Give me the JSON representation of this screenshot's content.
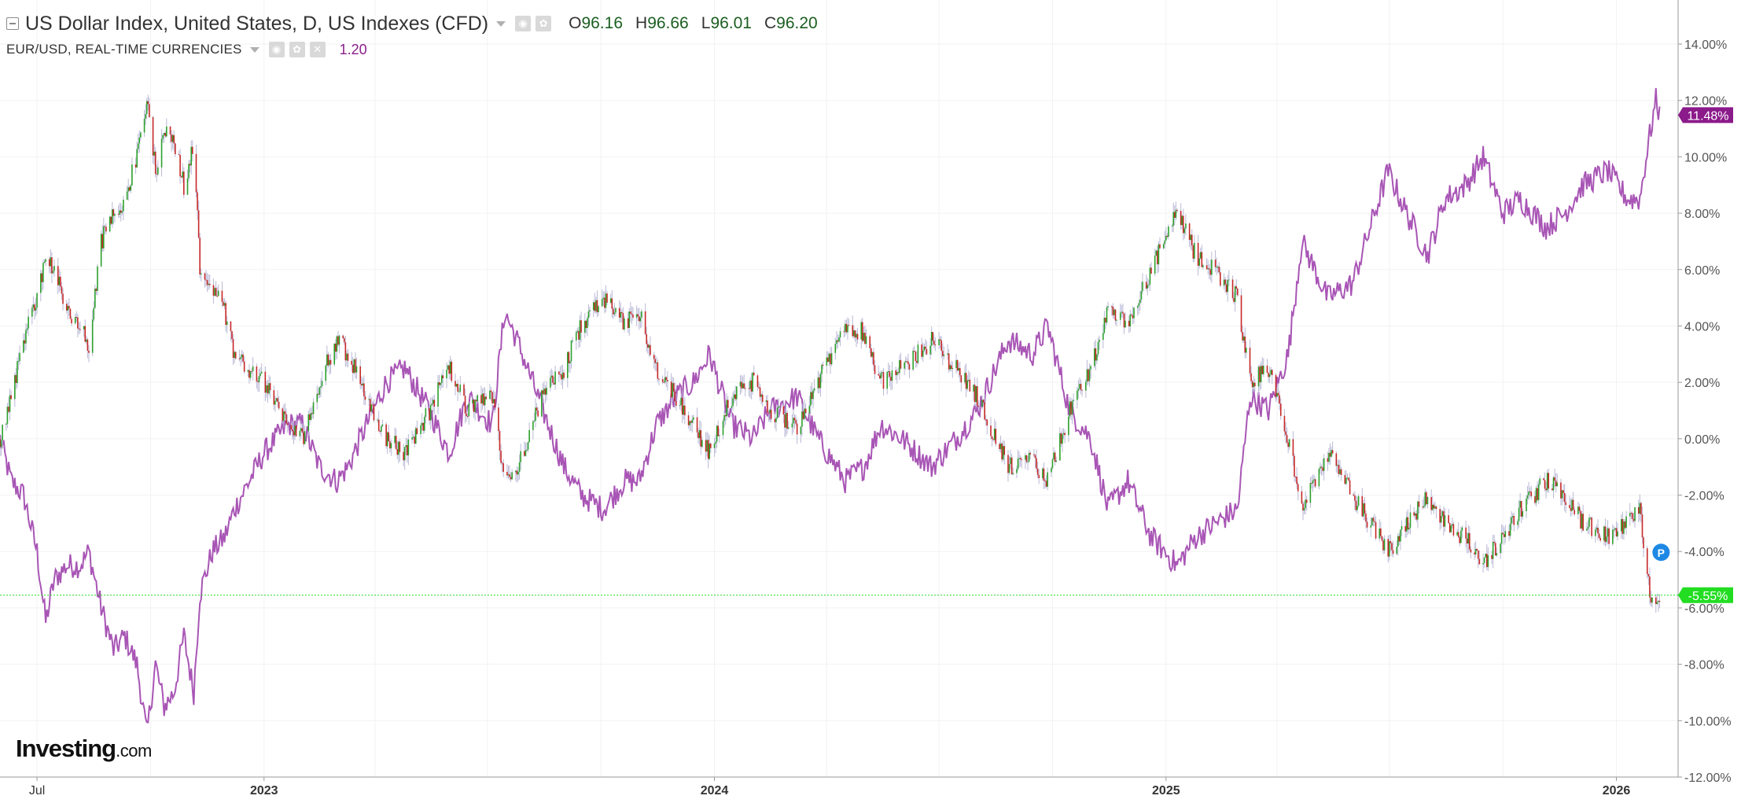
{
  "legend": {
    "main_title": "US Dollar Index, United States, D, US Indexes (CFD)",
    "open_prefix": "O",
    "open": "96.16",
    "high_prefix": "H",
    "high": "96.66",
    "low_prefix": "L",
    "low": "96.01",
    "close_prefix": "C",
    "close": "96.20",
    "compare_title": "EUR/USD, REAL-TIME CURRENCIES",
    "compare_value": "1.20"
  },
  "logo": {
    "main": "Investing",
    "suffix": ".com"
  },
  "colors": {
    "up": "#2ca02c",
    "down": "#c62828",
    "compare_line": "#a855b5",
    "compare_badge": "#8b1a8b",
    "last_price_badge": "#22dd22",
    "marker": "#1e88e5",
    "axis_text": "#555555",
    "grid": "#f2f2f2"
  },
  "chart_data": {
    "type": "line",
    "title": "",
    "xlabel": "",
    "ylabel": "",
    "y_unit": "percent change",
    "ylim": [
      -12,
      15
    ],
    "xlim": [
      "2022-06-01",
      "2026-02-20"
    ],
    "grid": true,
    "y_ticks": [
      "14.00%",
      "12.00%",
      "10.00%",
      "8.00%",
      "6.00%",
      "4.00%",
      "2.00%",
      "0.00%",
      "-2.00%",
      "-4.00%",
      "-6.00%",
      "-8.00%",
      "-10.00%",
      "-12.00%"
    ],
    "x_ticks": [
      {
        "date": "2022-07-01",
        "label": "Jul",
        "bold": false
      },
      {
        "date": "2023-01-01",
        "label": "2023",
        "bold": true
      },
      {
        "date": "2024-01-01",
        "label": "2024",
        "bold": true
      },
      {
        "date": "2025-01-01",
        "label": "2025",
        "bold": true
      },
      {
        "date": "2026-01-01",
        "label": "2026",
        "bold": true
      }
    ],
    "series": [
      {
        "name": "US Dollar Index, United States, D, US Indexes (CFD)",
        "style": "candlestick",
        "last_label": "-5.55%",
        "last_value": -5.55,
        "points": [
          [
            "2022-06-01",
            0.0
          ],
          [
            "2022-06-10",
            1.5
          ],
          [
            "2022-06-20",
            3.5
          ],
          [
            "2022-07-01",
            5.0
          ],
          [
            "2022-07-08",
            6.5
          ],
          [
            "2022-07-15",
            6.0
          ],
          [
            "2022-07-25",
            4.5
          ],
          [
            "2022-08-05",
            4.0
          ],
          [
            "2022-08-12",
            3.2
          ],
          [
            "2022-08-22",
            7.0
          ],
          [
            "2022-09-01",
            8.0
          ],
          [
            "2022-09-10",
            8.5
          ],
          [
            "2022-09-20",
            10.0
          ],
          [
            "2022-09-28",
            12.0
          ],
          [
            "2022-10-05",
            9.5
          ],
          [
            "2022-10-12",
            11.0
          ],
          [
            "2022-10-20",
            10.5
          ],
          [
            "2022-10-28",
            9.0
          ],
          [
            "2022-11-05",
            10.5
          ],
          [
            "2022-11-10",
            6.0
          ],
          [
            "2022-11-20",
            5.5
          ],
          [
            "2022-11-30",
            4.5
          ],
          [
            "2022-12-08",
            3.0
          ],
          [
            "2022-12-20",
            2.5
          ],
          [
            "2023-01-01",
            2.0
          ],
          [
            "2023-01-20",
            0.5
          ],
          [
            "2023-02-01",
            0.0
          ],
          [
            "2023-02-15",
            2.0
          ],
          [
            "2023-03-01",
            3.5
          ],
          [
            "2023-03-10",
            3.0
          ],
          [
            "2023-03-25",
            1.5
          ],
          [
            "2023-04-10",
            0.0
          ],
          [
            "2023-04-25",
            -0.5
          ],
          [
            "2023-05-15",
            1.0
          ],
          [
            "2023-05-31",
            2.5
          ],
          [
            "2023-06-15",
            1.0
          ],
          [
            "2023-07-05",
            1.5
          ],
          [
            "2023-07-15",
            -1.5
          ],
          [
            "2023-07-25",
            -1.0
          ],
          [
            "2023-08-15",
            1.5
          ],
          [
            "2023-09-01",
            2.5
          ],
          [
            "2023-09-15",
            4.0
          ],
          [
            "2023-10-03",
            5.0
          ],
          [
            "2023-10-20",
            4.0
          ],
          [
            "2023-11-01",
            4.5
          ],
          [
            "2023-11-15",
            2.5
          ],
          [
            "2023-12-01",
            1.5
          ],
          [
            "2023-12-15",
            0.5
          ],
          [
            "2023-12-28",
            -0.5
          ],
          [
            "2024-01-15",
            1.5
          ],
          [
            "2024-02-01",
            2.0
          ],
          [
            "2024-02-15",
            1.0
          ],
          [
            "2024-03-08",
            0.5
          ],
          [
            "2024-03-25",
            2.0
          ],
          [
            "2024-04-16",
            4.0
          ],
          [
            "2024-05-01",
            3.8
          ],
          [
            "2024-05-15",
            2.0
          ],
          [
            "2024-06-01",
            2.5
          ],
          [
            "2024-06-25",
            3.5
          ],
          [
            "2024-07-15",
            2.5
          ],
          [
            "2024-08-01",
            1.5
          ],
          [
            "2024-08-26",
            -1.0
          ],
          [
            "2024-09-15",
            -0.8
          ],
          [
            "2024-09-27",
            -1.5
          ],
          [
            "2024-10-15",
            1.0
          ],
          [
            "2024-11-01",
            2.5
          ],
          [
            "2024-11-15",
            4.5
          ],
          [
            "2024-12-01",
            4.0
          ],
          [
            "2024-12-20",
            6.0
          ],
          [
            "2025-01-10",
            8.0
          ],
          [
            "2025-01-25",
            6.5
          ],
          [
            "2025-02-10",
            6.0
          ],
          [
            "2025-02-28",
            5.0
          ],
          [
            "2025-03-10",
            2.0
          ],
          [
            "2025-03-25",
            2.5
          ],
          [
            "2025-04-10",
            0.0
          ],
          [
            "2025-04-21",
            -2.5
          ],
          [
            "2025-05-12",
            -0.5
          ],
          [
            "2025-06-01",
            -2.0
          ],
          [
            "2025-06-30",
            -4.0
          ],
          [
            "2025-07-15",
            -3.0
          ],
          [
            "2025-08-01",
            -2.0
          ],
          [
            "2025-08-15",
            -3.0
          ],
          [
            "2025-09-01",
            -3.5
          ],
          [
            "2025-09-15",
            -4.5
          ],
          [
            "2025-10-01",
            -3.5
          ],
          [
            "2025-10-15",
            -2.5
          ],
          [
            "2025-11-05",
            -1.5
          ],
          [
            "2025-11-20",
            -2.0
          ],
          [
            "2025-12-05",
            -3.0
          ],
          [
            "2025-12-25",
            -3.5
          ],
          [
            "2026-01-10",
            -3.0
          ],
          [
            "2026-01-20",
            -2.5
          ],
          [
            "2026-01-27",
            -5.2
          ],
          [
            "2026-02-02",
            -6.0
          ],
          [
            "2026-02-05",
            -5.55
          ]
        ]
      },
      {
        "name": "EUR/USD, REAL-TIME CURRENCIES",
        "style": "line",
        "last_label": "11.48%",
        "last_value": 11.48,
        "points": [
          [
            "2022-06-01",
            0.0
          ],
          [
            "2022-06-10",
            -1.5
          ],
          [
            "2022-06-20",
            -2.0
          ],
          [
            "2022-07-01",
            -4.0
          ],
          [
            "2022-07-08",
            -6.5
          ],
          [
            "2022-07-15",
            -5.0
          ],
          [
            "2022-07-25",
            -4.5
          ],
          [
            "2022-08-05",
            -4.5
          ],
          [
            "2022-08-12",
            -4.0
          ],
          [
            "2022-08-22",
            -6.0
          ],
          [
            "2022-09-01",
            -7.5
          ],
          [
            "2022-09-10",
            -7.0
          ],
          [
            "2022-09-20",
            -8.0
          ],
          [
            "2022-09-28",
            -10.5
          ],
          [
            "2022-10-05",
            -8.0
          ],
          [
            "2022-10-12",
            -9.5
          ],
          [
            "2022-10-20",
            -9.0
          ],
          [
            "2022-10-28",
            -7.0
          ],
          [
            "2022-11-05",
            -9.0
          ],
          [
            "2022-11-10",
            -5.5
          ],
          [
            "2022-11-20",
            -4.0
          ],
          [
            "2022-11-30",
            -3.5
          ],
          [
            "2022-12-08",
            -2.5
          ],
          [
            "2022-12-20",
            -1.5
          ],
          [
            "2023-01-01",
            -0.5
          ],
          [
            "2023-01-20",
            0.5
          ],
          [
            "2023-02-01",
            0.5
          ],
          [
            "2023-02-15",
            -1.0
          ],
          [
            "2023-03-01",
            -1.5
          ],
          [
            "2023-03-10",
            -1.0
          ],
          [
            "2023-03-25",
            0.5
          ],
          [
            "2023-04-10",
            2.0
          ],
          [
            "2023-04-25",
            2.5
          ],
          [
            "2023-05-15",
            1.0
          ],
          [
            "2023-05-31",
            -0.5
          ],
          [
            "2023-06-15",
            1.5
          ],
          [
            "2023-07-05",
            0.5
          ],
          [
            "2023-07-15",
            4.5
          ],
          [
            "2023-07-25",
            3.5
          ],
          [
            "2023-08-15",
            1.0
          ],
          [
            "2023-09-01",
            -1.0
          ],
          [
            "2023-09-15",
            -2.0
          ],
          [
            "2023-10-03",
            -2.5
          ],
          [
            "2023-10-20",
            -1.5
          ],
          [
            "2023-11-01",
            -1.5
          ],
          [
            "2023-11-15",
            0.5
          ],
          [
            "2023-12-01",
            1.5
          ],
          [
            "2023-12-15",
            2.0
          ],
          [
            "2023-12-28",
            3.0
          ],
          [
            "2024-01-15",
            0.5
          ],
          [
            "2024-02-01",
            0.0
          ],
          [
            "2024-02-15",
            1.0
          ],
          [
            "2024-03-08",
            1.5
          ],
          [
            "2024-03-25",
            0.0
          ],
          [
            "2024-04-16",
            -1.5
          ],
          [
            "2024-05-01",
            -1.0
          ],
          [
            "2024-05-15",
            0.5
          ],
          [
            "2024-06-01",
            0.0
          ],
          [
            "2024-06-25",
            -1.0
          ],
          [
            "2024-07-15",
            0.0
          ],
          [
            "2024-08-01",
            1.0
          ],
          [
            "2024-08-26",
            3.5
          ],
          [
            "2024-09-15",
            3.0
          ],
          [
            "2024-09-27",
            4.0
          ],
          [
            "2024-10-15",
            1.0
          ],
          [
            "2024-11-01",
            0.0
          ],
          [
            "2024-11-15",
            -2.5
          ],
          [
            "2024-12-01",
            -1.5
          ],
          [
            "2024-12-20",
            -3.5
          ],
          [
            "2025-01-10",
            -4.5
          ],
          [
            "2025-01-25",
            -3.5
          ],
          [
            "2025-02-10",
            -3.0
          ],
          [
            "2025-02-28",
            -2.5
          ],
          [
            "2025-03-10",
            1.5
          ],
          [
            "2025-03-25",
            1.0
          ],
          [
            "2025-04-10",
            3.0
          ],
          [
            "2025-04-21",
            7.0
          ],
          [
            "2025-05-12",
            5.0
          ],
          [
            "2025-06-01",
            5.5
          ],
          [
            "2025-06-30",
            9.5
          ],
          [
            "2025-07-15",
            8.0
          ],
          [
            "2025-08-01",
            6.5
          ],
          [
            "2025-08-15",
            8.5
          ],
          [
            "2025-09-01",
            9.0
          ],
          [
            "2025-09-15",
            10.0
          ],
          [
            "2025-10-01",
            8.0
          ],
          [
            "2025-10-15",
            8.5
          ],
          [
            "2025-11-05",
            7.5
          ],
          [
            "2025-11-20",
            8.0
          ],
          [
            "2025-12-05",
            9.0
          ],
          [
            "2025-12-25",
            9.5
          ],
          [
            "2026-01-10",
            8.5
          ],
          [
            "2026-01-20",
            8.5
          ],
          [
            "2026-01-27",
            10.5
          ],
          [
            "2026-02-02",
            12.0
          ],
          [
            "2026-02-05",
            11.48
          ]
        ]
      }
    ],
    "reference_line": {
      "value": -5.55,
      "style": "dotted"
    },
    "event_marker": {
      "date": "2026-01-27",
      "value": -4.0,
      "label": "P"
    }
  }
}
